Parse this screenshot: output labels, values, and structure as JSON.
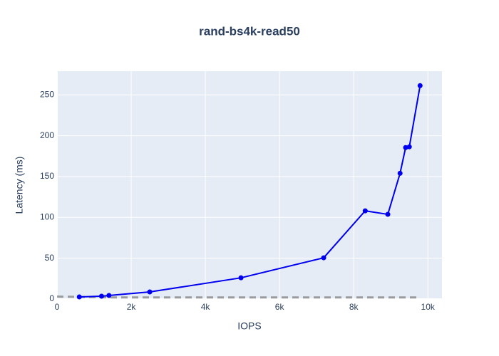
{
  "chart_data": {
    "type": "line",
    "title": "rand-bs4k-read50",
    "x_label": "IOPS",
    "y_label": "Latency (ms)",
    "xlim": [
      0,
      10380
    ],
    "ylim": [
      0,
      279
    ],
    "xticks": [
      0,
      {
        "value": 2000,
        "label": "2k"
      },
      {
        "value": 4000,
        "label": "4k"
      },
      {
        "value": 6000,
        "label": "6k"
      },
      {
        "value": 8000,
        "label": "8k"
      },
      {
        "value": 10000,
        "label": "10k"
      }
    ],
    "yticks": [
      0,
      50,
      100,
      150,
      200,
      250
    ],
    "grid": true,
    "series": [
      {
        "color": "#0000ee",
        "markers": true,
        "dash": false,
        "x": [
          600,
          1200,
          1400,
          2500,
          4960,
          7190,
          8310,
          8920,
          9250,
          9400,
          9500,
          9790
        ],
        "values": [
          2.6,
          3.5,
          4.4,
          8.7,
          26,
          50.5,
          108,
          103.7,
          154,
          185.5,
          186.4,
          261.3
        ]
      },
      {
        "color": "#808080",
        "markers": false,
        "dash": true,
        "x": [
          0,
          1400,
          9790
        ],
        "values": [
          3,
          2,
          2
        ]
      }
    ]
  }
}
